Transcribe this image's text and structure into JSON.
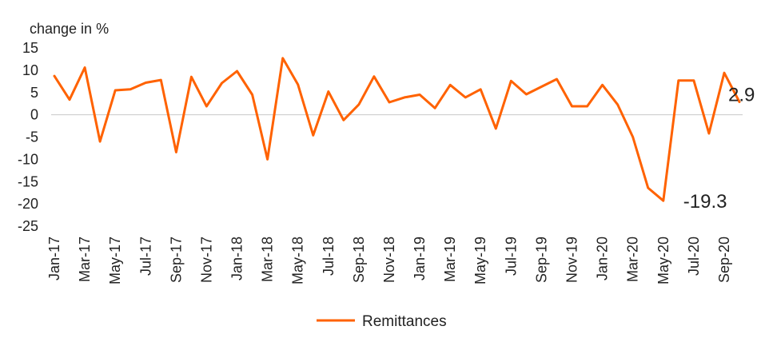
{
  "chart_data": {
    "type": "line",
    "ylabel": "change in %",
    "ylim": [
      -25,
      15
    ],
    "yticks": [
      15,
      10,
      5,
      0,
      -5,
      -10,
      -15,
      -20,
      -25
    ],
    "ytick_labels": [
      "15",
      "10",
      "5",
      "0",
      "-5",
      "-10",
      "-15",
      "-20",
      "-25"
    ],
    "x": [
      "Jan-17",
      "Feb-17",
      "Mar-17",
      "Apr-17",
      "May-17",
      "Jun-17",
      "Jul-17",
      "Aug-17",
      "Sep-17",
      "Oct-17",
      "Nov-17",
      "Dec-17",
      "Jan-18",
      "Feb-18",
      "Mar-18",
      "Apr-18",
      "May-18",
      "Jun-18",
      "Jul-18",
      "Aug-18",
      "Sep-18",
      "Oct-18",
      "Nov-18",
      "Dec-18",
      "Jan-19",
      "Feb-19",
      "Mar-19",
      "Apr-19",
      "May-19",
      "Jun-19",
      "Jul-19",
      "Aug-19",
      "Sep-19",
      "Oct-19",
      "Nov-19",
      "Dec-19",
      "Jan-20",
      "Feb-20",
      "Mar-20",
      "Apr-20",
      "May-20",
      "Jun-20",
      "Jul-20",
      "Aug-20",
      "Sep-20",
      "Oct-20"
    ],
    "xtick_labels": [
      "Jan-17",
      "Mar-17",
      "May-17",
      "Jul-17",
      "Sep-17",
      "Nov-17",
      "Jan-18",
      "Mar-18",
      "May-18",
      "Jul-18",
      "Sep-18",
      "Nov-18",
      "Jan-19",
      "Mar-19",
      "May-19",
      "Jul-19",
      "Sep-19",
      "Nov-19",
      "Jan-20",
      "Mar-20",
      "May-20",
      "Jul-20",
      "Sep-20"
    ],
    "series": [
      {
        "name": "Remittances",
        "color": "#FF6200",
        "values": [
          8.7,
          3.4,
          10.6,
          -6.0,
          5.5,
          5.7,
          7.2,
          7.8,
          -8.4,
          8.5,
          1.9,
          7.1,
          9.8,
          4.5,
          -10.0,
          12.7,
          6.8,
          -4.6,
          5.2,
          -1.2,
          2.3,
          8.6,
          2.8,
          3.9,
          4.5,
          1.5,
          6.7,
          3.9,
          5.7,
          -3.1,
          7.6,
          4.6,
          6.3,
          8.0,
          1.9,
          1.9,
          6.7,
          2.3,
          -5.0,
          -16.4,
          -19.3,
          7.7,
          7.7,
          -4.2,
          9.4,
          2.9
        ]
      }
    ],
    "annotations": [
      {
        "text": "2.9",
        "x": "Oct-20",
        "y": 2.9
      },
      {
        "text": "-19.3",
        "x": "May-20",
        "y": -19.3
      }
    ],
    "grid": false,
    "legend": "bottom-center"
  }
}
